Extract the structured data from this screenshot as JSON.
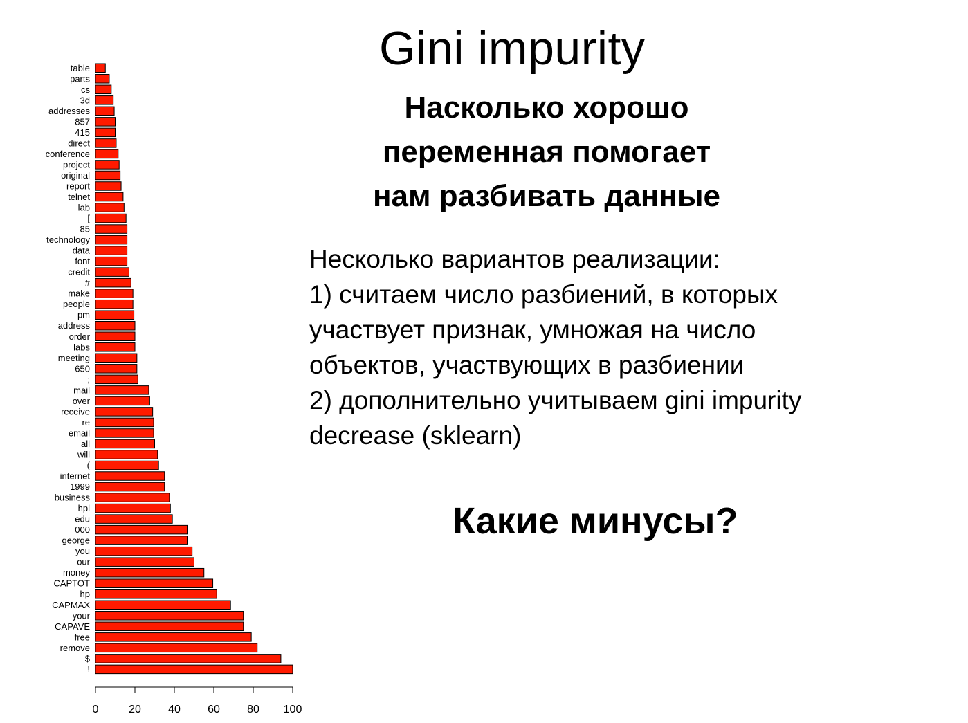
{
  "slide": {
    "title": "Gini impurity",
    "subtitle_lines": [
      "Насколько хорошо",
      "переменная помогает",
      "нам разбивать данные"
    ],
    "body_lines": [
      "Несколько вариантов реализации:",
      "1) считаем число разбиений, в которых",
      "участвует признак, умножая на число",
      "объектов, участвующих в разбиении",
      "2) дополнительно учитываем gini impurity",
      "decrease (sklearn)"
    ],
    "question": "Какие минусы?"
  },
  "chart_data": {
    "type": "bar",
    "orientation": "horizontal",
    "bar_color": "#ff1a00",
    "bar_edge_color": "#000000",
    "xlim": [
      0,
      100
    ],
    "xticks": [
      0,
      20,
      40,
      60,
      80,
      100
    ],
    "categories": [
      "table",
      "parts",
      "cs",
      "3d",
      "addresses",
      "857",
      "415",
      "direct",
      "conference",
      "project",
      "original",
      "report",
      "telnet",
      "lab",
      "[",
      "85",
      "technology",
      "data",
      "font",
      "credit",
      "#",
      "make",
      "people",
      "pm",
      "address",
      "order",
      "labs",
      "meeting",
      "650",
      ";",
      "mail",
      "over",
      "receive",
      "re",
      "email",
      "all",
      "will",
      "(",
      "internet",
      "1999",
      "business",
      "hpl",
      "edu",
      "000",
      "george",
      "you",
      "our",
      "money",
      "CAPTOT",
      "hp",
      "CAPMAX",
      "your",
      "CAPAVE",
      "free",
      "remove",
      "$",
      "!"
    ],
    "values": [
      5,
      7,
      8,
      9,
      9.5,
      10,
      10,
      10.5,
      11.5,
      12,
      12.5,
      13,
      14,
      14.5,
      15.5,
      16,
      16,
      16,
      16,
      17,
      18,
      19,
      19,
      19.5,
      20,
      20,
      20,
      21,
      21,
      21.5,
      27,
      27.5,
      29,
      29.5,
      29.5,
      30,
      31.5,
      32,
      35,
      35,
      37.5,
      38,
      39,
      46.5,
      46.5,
      49,
      50,
      55,
      59.5,
      61.5,
      68.5,
      75,
      75,
      79,
      82,
      94,
      100
    ]
  }
}
